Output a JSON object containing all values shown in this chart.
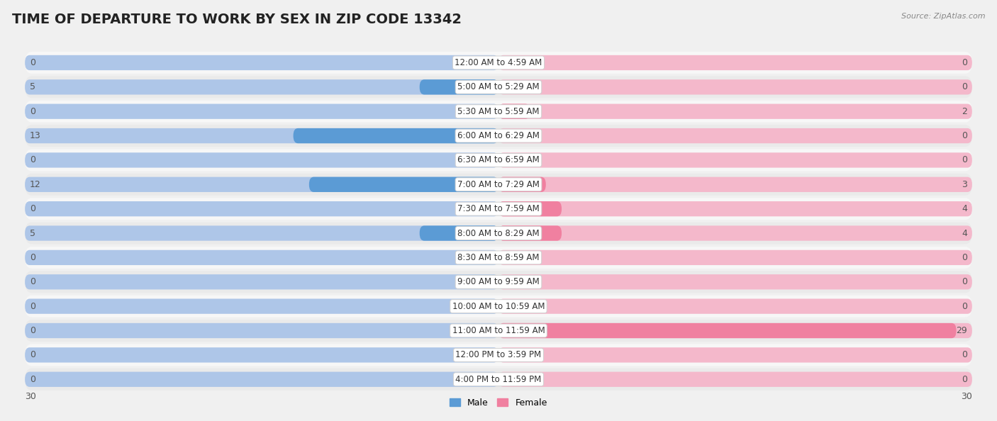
{
  "title": "TIME OF DEPARTURE TO WORK BY SEX IN ZIP CODE 13342",
  "source": "Source: ZipAtlas.com",
  "categories": [
    "12:00 AM to 4:59 AM",
    "5:00 AM to 5:29 AM",
    "5:30 AM to 5:59 AM",
    "6:00 AM to 6:29 AM",
    "6:30 AM to 6:59 AM",
    "7:00 AM to 7:29 AM",
    "7:30 AM to 7:59 AM",
    "8:00 AM to 8:29 AM",
    "8:30 AM to 8:59 AM",
    "9:00 AM to 9:59 AM",
    "10:00 AM to 10:59 AM",
    "11:00 AM to 11:59 AM",
    "12:00 PM to 3:59 PM",
    "4:00 PM to 11:59 PM"
  ],
  "male_values": [
    0,
    5,
    0,
    13,
    0,
    12,
    0,
    5,
    0,
    0,
    0,
    0,
    0,
    0
  ],
  "female_values": [
    0,
    0,
    2,
    0,
    0,
    3,
    4,
    4,
    0,
    0,
    0,
    29,
    0,
    0
  ],
  "male_light_color": "#aec6e8",
  "male_dark_color": "#5b9bd5",
  "female_light_color": "#f4b8cb",
  "female_dark_color": "#f080a0",
  "label_color": "#555555",
  "value_color": "#555555",
  "bg_color": "#f0f0f0",
  "row_odd_color": "#f7f7f7",
  "row_even_color": "#eaeaea",
  "axis_max": 30,
  "title_fontsize": 14,
  "label_fontsize": 8.5,
  "value_fontsize": 9
}
